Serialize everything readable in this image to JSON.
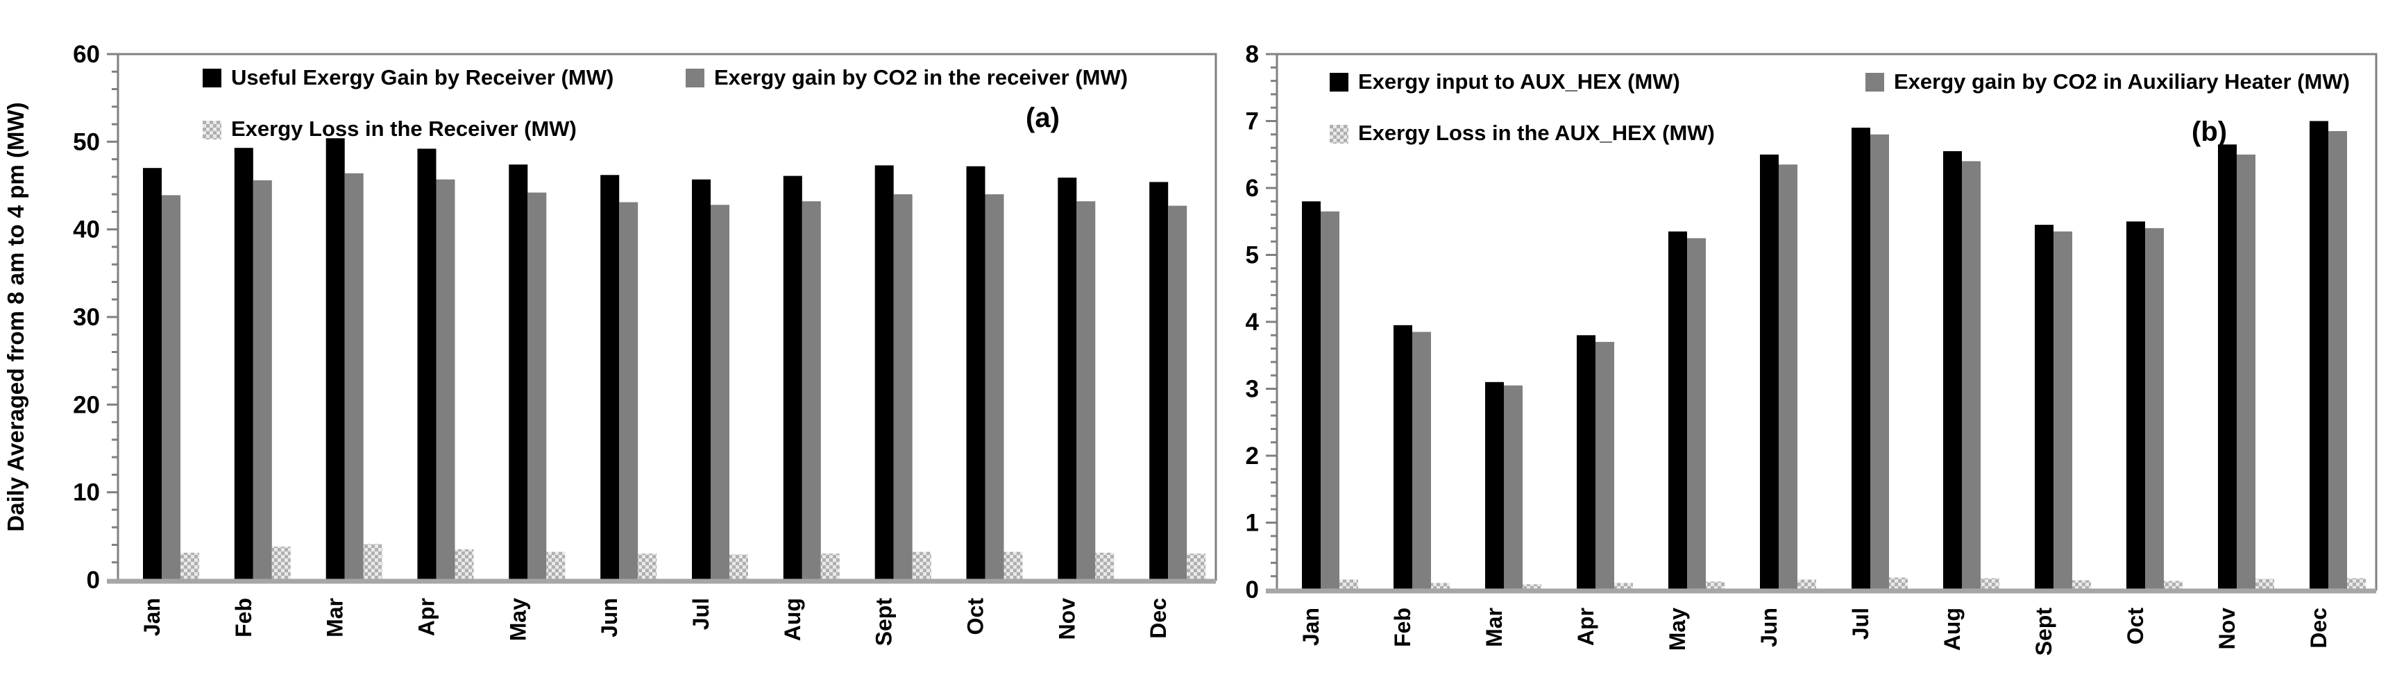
{
  "chart_data": [
    {
      "type": "bar",
      "panel_label": "(a)",
      "ylabel": "Daily Averaged from 8 am to 4 pm (MW)",
      "xlabel": "",
      "ylim": [
        0,
        60
      ],
      "y_major_step": 10,
      "y_minor_step": 2,
      "y_tick_labels": [
        "0",
        "10",
        "20",
        "30",
        "40",
        "50",
        "60"
      ],
      "grid": false,
      "legend_position": "top-inside",
      "categories": [
        "Jan",
        "Feb",
        "Mar",
        "Apr",
        "May",
        "Jun",
        "Jul",
        "Aug",
        "Sept",
        "Oct",
        "Nov",
        "Dec"
      ],
      "series": [
        {
          "name": "Useful Exergy Gain by Receiver (MW)",
          "swatch": "black",
          "color": "#000000",
          "values": [
            47.0,
            49.3,
            50.4,
            49.2,
            47.4,
            46.2,
            45.7,
            46.1,
            47.3,
            47.2,
            45.9,
            45.4
          ]
        },
        {
          "name": "Exergy gain by CO2 in the receiver (MW)",
          "swatch": "gray",
          "color": "#7f7f7f",
          "values": [
            43.9,
            45.6,
            46.4,
            45.7,
            44.2,
            43.1,
            42.8,
            43.2,
            44.0,
            44.0,
            43.2,
            42.7
          ]
        },
        {
          "name": "Exergy Loss in the Receiver (MW)",
          "swatch": "pattern",
          "color": "#c9c9c9",
          "values": [
            3.1,
            3.8,
            4.1,
            3.5,
            3.2,
            3.0,
            2.9,
            3.0,
            3.2,
            3.2,
            3.1,
            3.0
          ]
        }
      ]
    },
    {
      "type": "bar",
      "panel_label": "(b)",
      "ylabel": "",
      "xlabel": "",
      "ylim": [
        0,
        8
      ],
      "y_major_step": 1,
      "y_minor_step": 0.2,
      "y_tick_labels": [
        "0",
        "1",
        "2",
        "3",
        "4",
        "5",
        "6",
        "7",
        "8"
      ],
      "grid": false,
      "legend_position": "top-inside",
      "categories": [
        "Jan",
        "Feb",
        "Mar",
        "Apr",
        "May",
        "Jun",
        "Jul",
        "Aug",
        "Sept",
        "Oct",
        "Nov",
        "Dec"
      ],
      "series": [
        {
          "name": "Exergy input to AUX_HEX (MW)",
          "swatch": "black",
          "color": "#000000",
          "values": [
            5.8,
            3.95,
            3.1,
            3.8,
            5.35,
            6.5,
            6.9,
            6.55,
            5.45,
            5.5,
            6.65,
            7.0
          ]
        },
        {
          "name": "Exergy gain by CO2 in Auxiliary Heater (MW)",
          "swatch": "gray",
          "color": "#7f7f7f",
          "values": [
            5.65,
            3.85,
            3.05,
            3.7,
            5.25,
            6.35,
            6.8,
            6.4,
            5.35,
            5.4,
            6.5,
            6.85
          ]
        },
        {
          "name": "Exergy Loss in the AUX_HEX (MW)",
          "swatch": "pattern",
          "color": "#c9c9c9",
          "values": [
            0.15,
            0.1,
            0.08,
            0.1,
            0.12,
            0.15,
            0.18,
            0.17,
            0.14,
            0.13,
            0.16,
            0.17
          ]
        }
      ]
    }
  ],
  "colors": {
    "bar_black": "#000000",
    "bar_gray": "#7f7f7f",
    "pattern_dark": "#b0b0b0",
    "pattern_light": "#e9e9e9",
    "axis_box": "#808080",
    "baseline": "#a6a6a6",
    "text": "#000000",
    "background": "#ffffff"
  }
}
